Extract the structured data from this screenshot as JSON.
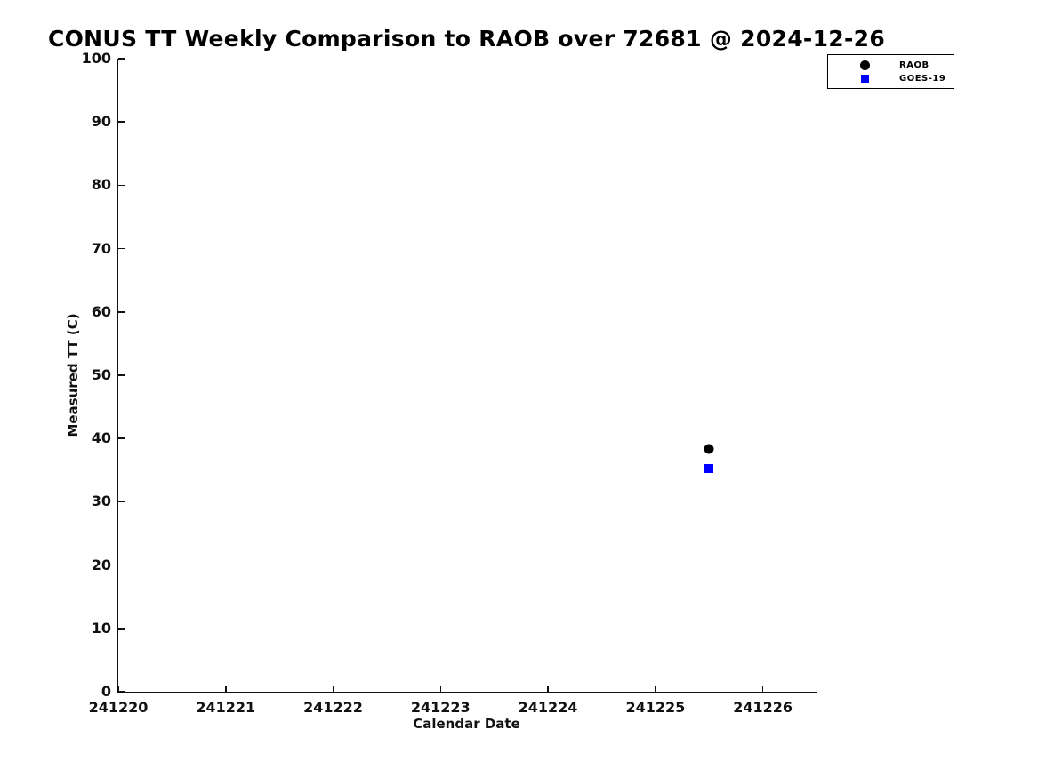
{
  "chart_data": {
    "type": "scatter",
    "title": "CONUS TT Weekly Comparison to RAOB over 72681 @ 2024-12-26",
    "xlabel": "Calendar Date",
    "ylabel": "Measured TT (C)",
    "xlim": [
      241220,
      241226.5
    ],
    "ylim": [
      0,
      100
    ],
    "x_ticks": [
      241220,
      241221,
      241222,
      241223,
      241224,
      241225,
      241226
    ],
    "y_ticks": [
      0,
      10,
      20,
      30,
      40,
      50,
      60,
      70,
      80,
      90,
      100
    ],
    "grid": false,
    "legend_position": "top-right",
    "series": [
      {
        "name": "RAOB",
        "marker": "circle",
        "color": "#000000",
        "points": [
          {
            "x": 241225.5,
            "y": 38.3
          }
        ]
      },
      {
        "name": "GOES-19",
        "marker": "square",
        "color": "#0000ff",
        "points": [
          {
            "x": 241225.5,
            "y": 35.3
          }
        ]
      }
    ]
  }
}
